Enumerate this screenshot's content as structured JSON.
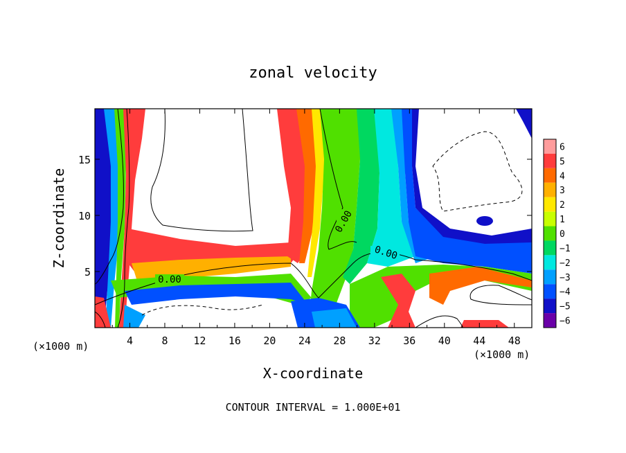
{
  "chart_data": {
    "type": "heatmap",
    "title": "zonal velocity",
    "xlabel": "X-coordinate",
    "ylabel": "Z-coordinate",
    "x_unit": "(×1000 m)",
    "z_unit": "(×1000 m)",
    "xlim": [
      0,
      50
    ],
    "ylim": [
      0,
      19.5
    ],
    "x_ticks": [
      "4",
      "8",
      "12",
      "16",
      "20",
      "24",
      "28",
      "32",
      "36",
      "40",
      "44",
      "48"
    ],
    "y_ticks": [
      "5",
      "10",
      "15"
    ],
    "colorbar": {
      "levels": [
        "6",
        "5",
        "4",
        "3",
        "2",
        "1",
        "0",
        "−1",
        "−2",
        "−3",
        "−4",
        "−5",
        "−6"
      ],
      "range": [
        -6,
        6
      ]
    },
    "contour_labels": [
      "0.00",
      "0.00",
      "0.00"
    ],
    "footer": "CONTOUR INTERVAL = 1.000E+01",
    "grid": false
  },
  "colors": {
    "pos6": "#ff9c9c",
    "pos5": "#ff3c3c",
    "pos4": "#ff6a00",
    "pos3": "#ffb000",
    "pos2": "#ffe800",
    "pos1": "#c8ff00",
    "zero": "#50e000",
    "neg1": "#00d860",
    "neg2": "#00e8e0",
    "neg3": "#00a0ff",
    "neg4": "#0050ff",
    "neg5": "#1010c8",
    "neg6": "#6a00a8"
  }
}
